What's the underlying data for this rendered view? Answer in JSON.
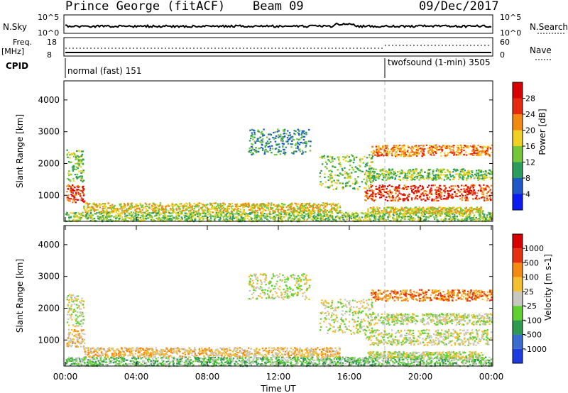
{
  "header": {
    "station": "Prince George (fitACF)",
    "beam": "Beam 09",
    "date": "09/Dec/2017"
  },
  "top_panels": {
    "nsky_label": "N.Sky",
    "nsky_ticks": [
      "10^5",
      "10^0"
    ],
    "nsearch_label": "N.Search",
    "nsearch_ticks": [
      "10^5",
      "10^0"
    ],
    "freq_label": "Freq.",
    "freq_unit": "[MHz]",
    "freq_ticks": [
      "18",
      "8"
    ],
    "nave_label": "Nave",
    "nave_ticks": [
      "60",
      "0"
    ],
    "cpid_label": "CPID",
    "cpid_segments": [
      {
        "label": "normal (fast) 151",
        "start_hour": 0
      },
      {
        "label": "twofsound (1-min) 3505",
        "start_hour": 18
      }
    ]
  },
  "chart_data": [
    {
      "type": "heatmap",
      "panel": "power",
      "ylabel": "Slant Range [km]",
      "xlabel": "",
      "y_ticks": [
        1000,
        2000,
        3000,
        4000
      ],
      "ylim": [
        180,
        4600
      ],
      "xlim": [
        0,
        24
      ],
      "colorbar": {
        "label": "Power [dB]",
        "ticks": [
          "4",
          "8",
          "12",
          "16",
          "20",
          "24",
          "28"
        ],
        "colors": [
          "#0b1cf0",
          "#1e58c8",
          "#2a9d5a",
          "#76c63a",
          "#f0d020",
          "#f28a10",
          "#e62a10",
          "#d80000"
        ]
      },
      "regions": [
        {
          "t0": 0.05,
          "t1": 1.05,
          "r0": 800,
          "r1": 1350,
          "level": 6
        },
        {
          "t0": 0.05,
          "t1": 1.0,
          "r0": 1450,
          "r1": 2450,
          "level": 3
        },
        {
          "t0": 1.0,
          "t1": 15.5,
          "r0": 480,
          "r1": 780,
          "level": 4
        },
        {
          "t0": 0.0,
          "t1": 24.0,
          "r0": 200,
          "r1": 480,
          "level": 3
        },
        {
          "t0": 10.3,
          "t1": 13.8,
          "r0": 2300,
          "r1": 3100,
          "level": 2
        },
        {
          "t0": 14.3,
          "t1": 17.3,
          "r0": 1200,
          "r1": 2300,
          "level": 3
        },
        {
          "t0": 16.8,
          "t1": 24.0,
          "r0": 850,
          "r1": 1350,
          "level": 6
        },
        {
          "t0": 17.0,
          "t1": 24.0,
          "r0": 1500,
          "r1": 1850,
          "level": 3
        },
        {
          "t0": 17.0,
          "t1": 23.5,
          "r0": 450,
          "r1": 650,
          "level": 4
        },
        {
          "t0": 17.2,
          "t1": 24.0,
          "r0": 2250,
          "r1": 2600,
          "level": 5
        }
      ]
    },
    {
      "type": "heatmap",
      "panel": "velocity",
      "ylabel": "Slant Range [km]",
      "xlabel": "Time UT",
      "x_ticks": [
        "00:00",
        "04:00",
        "08:00",
        "12:00",
        "16:00",
        "20:00",
        "00:00"
      ],
      "y_ticks": [
        1000,
        2000,
        3000,
        4000
      ],
      "ylim": [
        180,
        4600
      ],
      "xlim": [
        0,
        24
      ],
      "colorbar": {
        "label": "Velocity [m s-1]",
        "ticks": [
          "1000",
          "500",
          "100",
          "25",
          "-25",
          "-100",
          "-500",
          "-1000"
        ],
        "colors": [
          "#1c3ce0",
          "#3a6cd0",
          "#2e9a50",
          "#60d030",
          "#c8c8c0",
          "#f5c030",
          "#f58a10",
          "#e63010",
          "#d80000"
        ]
      },
      "regions": [
        {
          "t0": 0.05,
          "t1": 1.05,
          "r0": 800,
          "r1": 1350,
          "level": 5
        },
        {
          "t0": 0.05,
          "t1": 1.0,
          "r0": 1450,
          "r1": 2450,
          "level": 4
        },
        {
          "t0": 1.0,
          "t1": 15.5,
          "r0": 480,
          "r1": 780,
          "level": 5
        },
        {
          "t0": 0.0,
          "t1": 24.0,
          "r0": 200,
          "r1": 480,
          "level": 3
        },
        {
          "t0": 10.3,
          "t1": 13.8,
          "r0": 2300,
          "r1": 3100,
          "level": 4
        },
        {
          "t0": 14.3,
          "t1": 17.3,
          "r0": 1200,
          "r1": 2300,
          "level": 4
        },
        {
          "t0": 16.8,
          "t1": 24.0,
          "r0": 850,
          "r1": 1350,
          "level": 4
        },
        {
          "t0": 17.0,
          "t1": 24.0,
          "r0": 1500,
          "r1": 1850,
          "level": 4
        },
        {
          "t0": 17.0,
          "t1": 23.5,
          "r0": 450,
          "r1": 650,
          "level": 4
        },
        {
          "t0": 17.2,
          "t1": 24.0,
          "r0": 2250,
          "r1": 2600,
          "level": 6
        }
      ]
    }
  ]
}
